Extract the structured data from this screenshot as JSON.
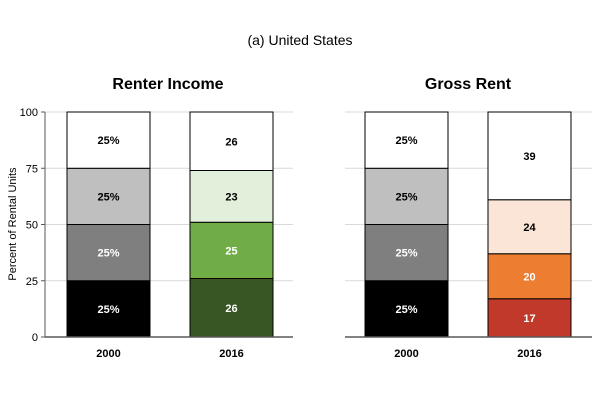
{
  "title": "(a)  United States",
  "chart_data": [
    {
      "type": "bar",
      "stacked": true,
      "title": "Renter Income",
      "ylabel": "Percent of Rental Units",
      "xlabel": "",
      "ylim": [
        0,
        100
      ],
      "yticks": [
        "0",
        "25",
        "50",
        "75",
        "100"
      ],
      "grid": true,
      "categories": [
        "2000",
        "2016"
      ],
      "bars": [
        {
          "category": "2000",
          "segments": [
            {
              "value": 25,
              "label": "25%",
              "color": "#000000",
              "text_color": "#ffffff"
            },
            {
              "value": 25,
              "label": "25%",
              "color": "#7f7f7f",
              "text_color": "#ffffff"
            },
            {
              "value": 25,
              "label": "25%",
              "color": "#bfbfbf",
              "text_color": "#000000"
            },
            {
              "value": 25,
              "label": "25%",
              "color": "#ffffff",
              "text_color": "#000000"
            }
          ]
        },
        {
          "category": "2016",
          "segments": [
            {
              "value": 26,
              "label": "26",
              "color": "#375623",
              "text_color": "#ffffff"
            },
            {
              "value": 25,
              "label": "25",
              "color": "#70ad47",
              "text_color": "#ffffff"
            },
            {
              "value": 23,
              "label": "23",
              "color": "#e2efda",
              "text_color": "#000000"
            },
            {
              "value": 26,
              "label": "26",
              "color": "#ffffff",
              "text_color": "#000000"
            }
          ]
        }
      ]
    },
    {
      "type": "bar",
      "stacked": true,
      "title": "Gross Rent",
      "ylim": [
        0,
        100
      ],
      "grid": true,
      "categories": [
        "2000",
        "2016"
      ],
      "bars": [
        {
          "category": "2000",
          "segments": [
            {
              "value": 25,
              "label": "25%",
              "color": "#000000",
              "text_color": "#ffffff"
            },
            {
              "value": 25,
              "label": "25%",
              "color": "#7f7f7f",
              "text_color": "#ffffff"
            },
            {
              "value": 25,
              "label": "25%",
              "color": "#bfbfbf",
              "text_color": "#000000"
            },
            {
              "value": 25,
              "label": "25%",
              "color": "#ffffff",
              "text_color": "#000000"
            }
          ]
        },
        {
          "category": "2016",
          "segments": [
            {
              "value": 17,
              "label": "17",
              "color": "#c0392b",
              "text_color": "#ffffff"
            },
            {
              "value": 20,
              "label": "20",
              "color": "#ed7d31",
              "text_color": "#ffffff"
            },
            {
              "value": 24,
              "label": "24",
              "color": "#fbe5d6",
              "text_color": "#000000"
            },
            {
              "value": 39,
              "label": "39",
              "color": "#ffffff",
              "text_color": "#000000"
            }
          ]
        }
      ]
    }
  ]
}
